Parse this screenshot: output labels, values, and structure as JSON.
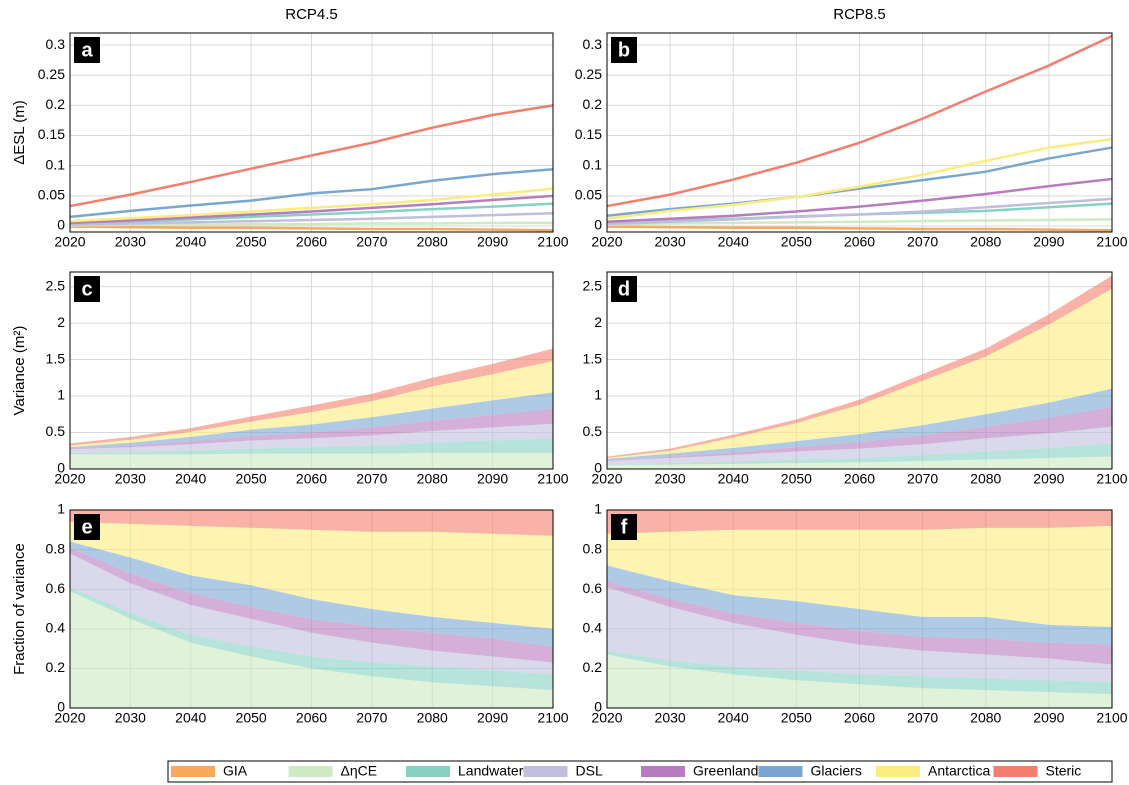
{
  "legend": [
    {
      "name": "GIA",
      "color": "#f8a95c"
    },
    {
      "name": "ΔηCE",
      "color": "#cdeac3"
    },
    {
      "name": "Landwater",
      "color": "#86d2c2"
    },
    {
      "name": "DSL",
      "color": "#c1bedd"
    },
    {
      "name": "Greenland",
      "color": "#b77cc0"
    },
    {
      "name": "Glaciers",
      "color": "#79a7d2"
    },
    {
      "name": "Antarctica",
      "color": "#fbec7e"
    },
    {
      "name": "Steric",
      "color": "#f47e6d"
    }
  ],
  "chart_data": [
    {
      "type": "line",
      "title": "RCP4.5",
      "label": "a",
      "ylabel": "ΔESL (m)",
      "x": [
        2020,
        2030,
        2040,
        2050,
        2060,
        2070,
        2080,
        2090,
        2100
      ],
      "xlim": [
        2020,
        2100
      ],
      "xticks": [
        2020,
        2030,
        2040,
        2050,
        2060,
        2070,
        2080,
        2090,
        2100
      ],
      "ylim": [
        -0.01,
        0.32
      ],
      "yticks": [
        0,
        0.05,
        0.1,
        0.15,
        0.2,
        0.25,
        0.3
      ],
      "grid": true,
      "series": [
        {
          "values": [
            -0.001,
            -0.002,
            -0.003,
            -0.003,
            -0.004,
            -0.005,
            -0.005,
            -0.006,
            -0.007
          ]
        },
        {
          "values": [
            0.001,
            0.002,
            0.002,
            0.003,
            0.003,
            0.004,
            0.004,
            0.005,
            0.005
          ]
        },
        {
          "values": [
            0.004,
            0.007,
            0.011,
            0.015,
            0.019,
            0.023,
            0.028,
            0.032,
            0.037
          ]
        },
        {
          "values": [
            0.002,
            0.004,
            0.006,
            0.008,
            0.01,
            0.012,
            0.015,
            0.018,
            0.021
          ]
        },
        {
          "values": [
            0.005,
            0.009,
            0.014,
            0.019,
            0.024,
            0.03,
            0.036,
            0.043,
            0.05
          ]
        },
        {
          "values": [
            0.015,
            0.025,
            0.034,
            0.042,
            0.054,
            0.061,
            0.075,
            0.086,
            0.094
          ]
        },
        {
          "values": [
            0.008,
            0.013,
            0.018,
            0.024,
            0.03,
            0.036,
            0.043,
            0.052,
            0.062
          ]
        },
        {
          "values": [
            0.033,
            0.052,
            0.073,
            0.095,
            0.117,
            0.138,
            0.163,
            0.184,
            0.2
          ]
        }
      ]
    },
    {
      "type": "line",
      "title": "RCP8.5",
      "label": "b",
      "x": [
        2020,
        2030,
        2040,
        2050,
        2060,
        2070,
        2080,
        2090,
        2100
      ],
      "xlim": [
        2020,
        2100
      ],
      "xticks": [
        2020,
        2030,
        2040,
        2050,
        2060,
        2070,
        2080,
        2090,
        2100
      ],
      "ylim": [
        -0.01,
        0.32
      ],
      "yticks": [
        0,
        0.05,
        0.1,
        0.15,
        0.2,
        0.25,
        0.3
      ],
      "grid": true,
      "series": [
        {
          "values": [
            -0.001,
            -0.002,
            -0.003,
            -0.003,
            -0.004,
            -0.005,
            -0.005,
            -0.006,
            -0.007
          ]
        },
        {
          "values": [
            0.002,
            0.004,
            0.005,
            0.006,
            0.007,
            0.008,
            0.009,
            0.01,
            0.011
          ]
        },
        {
          "values": [
            0.005,
            0.009,
            0.012,
            0.016,
            0.019,
            0.022,
            0.025,
            0.031,
            0.037
          ]
        },
        {
          "values": [
            0.003,
            0.007,
            0.011,
            0.015,
            0.019,
            0.024,
            0.031,
            0.038,
            0.045
          ]
        },
        {
          "values": [
            0.007,
            0.012,
            0.017,
            0.024,
            0.032,
            0.042,
            0.053,
            0.066,
            0.078
          ]
        },
        {
          "values": [
            0.017,
            0.028,
            0.037,
            0.048,
            0.062,
            0.076,
            0.09,
            0.112,
            0.13
          ]
        },
        {
          "values": [
            0.012,
            0.025,
            0.035,
            0.048,
            0.065,
            0.085,
            0.108,
            0.13,
            0.144
          ]
        },
        {
          "values": [
            0.033,
            0.052,
            0.077,
            0.105,
            0.138,
            0.178,
            0.223,
            0.266,
            0.315
          ]
        }
      ]
    },
    {
      "type": "area",
      "label": "c",
      "ylabel": "Variance (m²)",
      "x": [
        2020,
        2030,
        2040,
        2050,
        2060,
        2070,
        2080,
        2090,
        2100
      ],
      "xlim": [
        2020,
        2100
      ],
      "xticks": [
        2020,
        2030,
        2040,
        2050,
        2060,
        2070,
        2080,
        2090,
        2100
      ],
      "ylim": [
        0,
        2.7
      ],
      "yticks": [
        0,
        0.5,
        1,
        1.5,
        2,
        2.5
      ],
      "grid": true,
      "series": [
        {
          "values": [
            0,
            0,
            0,
            0,
            0,
            0,
            0,
            0,
            0
          ]
        },
        {
          "values": [
            0.2,
            0.2,
            0.2,
            0.21,
            0.21,
            0.21,
            0.22,
            0.22,
            0.22
          ]
        },
        {
          "values": [
            0.02,
            0.03,
            0.05,
            0.07,
            0.09,
            0.11,
            0.14,
            0.17,
            0.2
          ]
        },
        {
          "values": [
            0.05,
            0.07,
            0.09,
            0.11,
            0.12,
            0.14,
            0.16,
            0.18,
            0.2
          ]
        },
        {
          "values": [
            0.01,
            0.02,
            0.04,
            0.06,
            0.08,
            0.11,
            0.14,
            0.17,
            0.21
          ]
        },
        {
          "values": [
            0.02,
            0.04,
            0.06,
            0.09,
            0.11,
            0.14,
            0.17,
            0.2,
            0.22
          ]
        },
        {
          "values": [
            0.02,
            0.04,
            0.07,
            0.11,
            0.17,
            0.22,
            0.3,
            0.36,
            0.43
          ]
        },
        {
          "values": [
            0.03,
            0.04,
            0.05,
            0.07,
            0.09,
            0.1,
            0.12,
            0.14,
            0.17
          ]
        }
      ]
    },
    {
      "type": "area",
      "label": "d",
      "x": [
        2020,
        2030,
        2040,
        2050,
        2060,
        2070,
        2080,
        2090,
        2100
      ],
      "xlim": [
        2020,
        2100
      ],
      "xticks": [
        2020,
        2030,
        2040,
        2050,
        2060,
        2070,
        2080,
        2090,
        2100
      ],
      "ylim": [
        0,
        2.7
      ],
      "yticks": [
        0,
        0.5,
        1,
        1.5,
        2,
        2.5
      ],
      "grid": true,
      "series": [
        {
          "values": [
            0,
            0,
            0,
            0,
            0,
            0,
            0,
            0,
            0
          ]
        },
        {
          "values": [
            0.05,
            0.06,
            0.07,
            0.08,
            0.09,
            0.11,
            0.13,
            0.15,
            0.17
          ]
        },
        {
          "values": [
            0.01,
            0.02,
            0.03,
            0.05,
            0.06,
            0.08,
            0.11,
            0.14,
            0.18
          ]
        },
        {
          "values": [
            0.05,
            0.07,
            0.09,
            0.11,
            0.13,
            0.15,
            0.18,
            0.2,
            0.23
          ]
        },
        {
          "values": [
            0.01,
            0.02,
            0.04,
            0.06,
            0.09,
            0.12,
            0.16,
            0.21,
            0.27
          ]
        },
        {
          "values": [
            0.02,
            0.04,
            0.06,
            0.08,
            0.11,
            0.14,
            0.17,
            0.21,
            0.25
          ]
        },
        {
          "values": [
            0.01,
            0.04,
            0.14,
            0.25,
            0.4,
            0.61,
            0.79,
            1.07,
            1.37
          ]
        },
        {
          "values": [
            0.02,
            0.03,
            0.04,
            0.05,
            0.07,
            0.09,
            0.11,
            0.14,
            0.18
          ]
        }
      ]
    },
    {
      "type": "area",
      "label": "e",
      "ylabel": "Fraction of variance",
      "x": [
        2020,
        2030,
        2040,
        2050,
        2060,
        2070,
        2080,
        2090,
        2100
      ],
      "xlim": [
        2020,
        2100
      ],
      "xticks": [
        2020,
        2030,
        2040,
        2050,
        2060,
        2070,
        2080,
        2090,
        2100
      ],
      "ylim": [
        0,
        1
      ],
      "yticks": [
        0,
        0.2,
        0.4,
        0.6,
        0.8,
        1
      ],
      "grid": true,
      "series": [
        {
          "values": [
            0,
            0,
            0,
            0,
            0,
            0,
            0,
            0,
            0
          ]
        },
        {
          "values": [
            0.59,
            0.45,
            0.33,
            0.26,
            0.2,
            0.16,
            0.13,
            0.11,
            0.09
          ]
        },
        {
          "values": [
            0.02,
            0.03,
            0.04,
            0.05,
            0.06,
            0.07,
            0.08,
            0.08,
            0.08
          ]
        },
        {
          "values": [
            0.17,
            0.15,
            0.15,
            0.14,
            0.12,
            0.1,
            0.08,
            0.07,
            0.06
          ]
        },
        {
          "values": [
            0.03,
            0.05,
            0.06,
            0.06,
            0.07,
            0.08,
            0.09,
            0.09,
            0.08
          ]
        },
        {
          "values": [
            0.03,
            0.08,
            0.09,
            0.11,
            0.1,
            0.09,
            0.08,
            0.08,
            0.09
          ]
        },
        {
          "values": [
            0.1,
            0.17,
            0.25,
            0.29,
            0.35,
            0.39,
            0.43,
            0.45,
            0.47
          ]
        },
        {
          "values": [
            0.06,
            0.07,
            0.08,
            0.09,
            0.1,
            0.11,
            0.11,
            0.12,
            0.13
          ]
        }
      ]
    },
    {
      "type": "area",
      "label": "f",
      "x": [
        2020,
        2030,
        2040,
        2050,
        2060,
        2070,
        2080,
        2090,
        2100
      ],
      "xlim": [
        2020,
        2100
      ],
      "xticks": [
        2020,
        2030,
        2040,
        2050,
        2060,
        2070,
        2080,
        2090,
        2100
      ],
      "ylim": [
        0,
        1
      ],
      "yticks": [
        0,
        0.2,
        0.4,
        0.6,
        0.8,
        1
      ],
      "grid": true,
      "series": [
        {
          "values": [
            0,
            0,
            0,
            0,
            0,
            0,
            0,
            0,
            0
          ]
        },
        {
          "values": [
            0.27,
            0.21,
            0.17,
            0.14,
            0.12,
            0.1,
            0.09,
            0.08,
            0.07
          ]
        },
        {
          "values": [
            0.02,
            0.03,
            0.04,
            0.05,
            0.05,
            0.06,
            0.06,
            0.06,
            0.06
          ]
        },
        {
          "values": [
            0.32,
            0.27,
            0.22,
            0.18,
            0.15,
            0.13,
            0.12,
            0.11,
            0.09
          ]
        },
        {
          "values": [
            0.03,
            0.04,
            0.05,
            0.06,
            0.07,
            0.07,
            0.08,
            0.08,
            0.1
          ]
        },
        {
          "values": [
            0.08,
            0.09,
            0.09,
            0.11,
            0.11,
            0.1,
            0.11,
            0.09,
            0.09
          ]
        },
        {
          "values": [
            0.16,
            0.25,
            0.33,
            0.36,
            0.4,
            0.44,
            0.45,
            0.49,
            0.51
          ]
        },
        {
          "values": [
            0.12,
            0.11,
            0.1,
            0.1,
            0.1,
            0.1,
            0.09,
            0.09,
            0.08
          ]
        }
      ]
    }
  ]
}
